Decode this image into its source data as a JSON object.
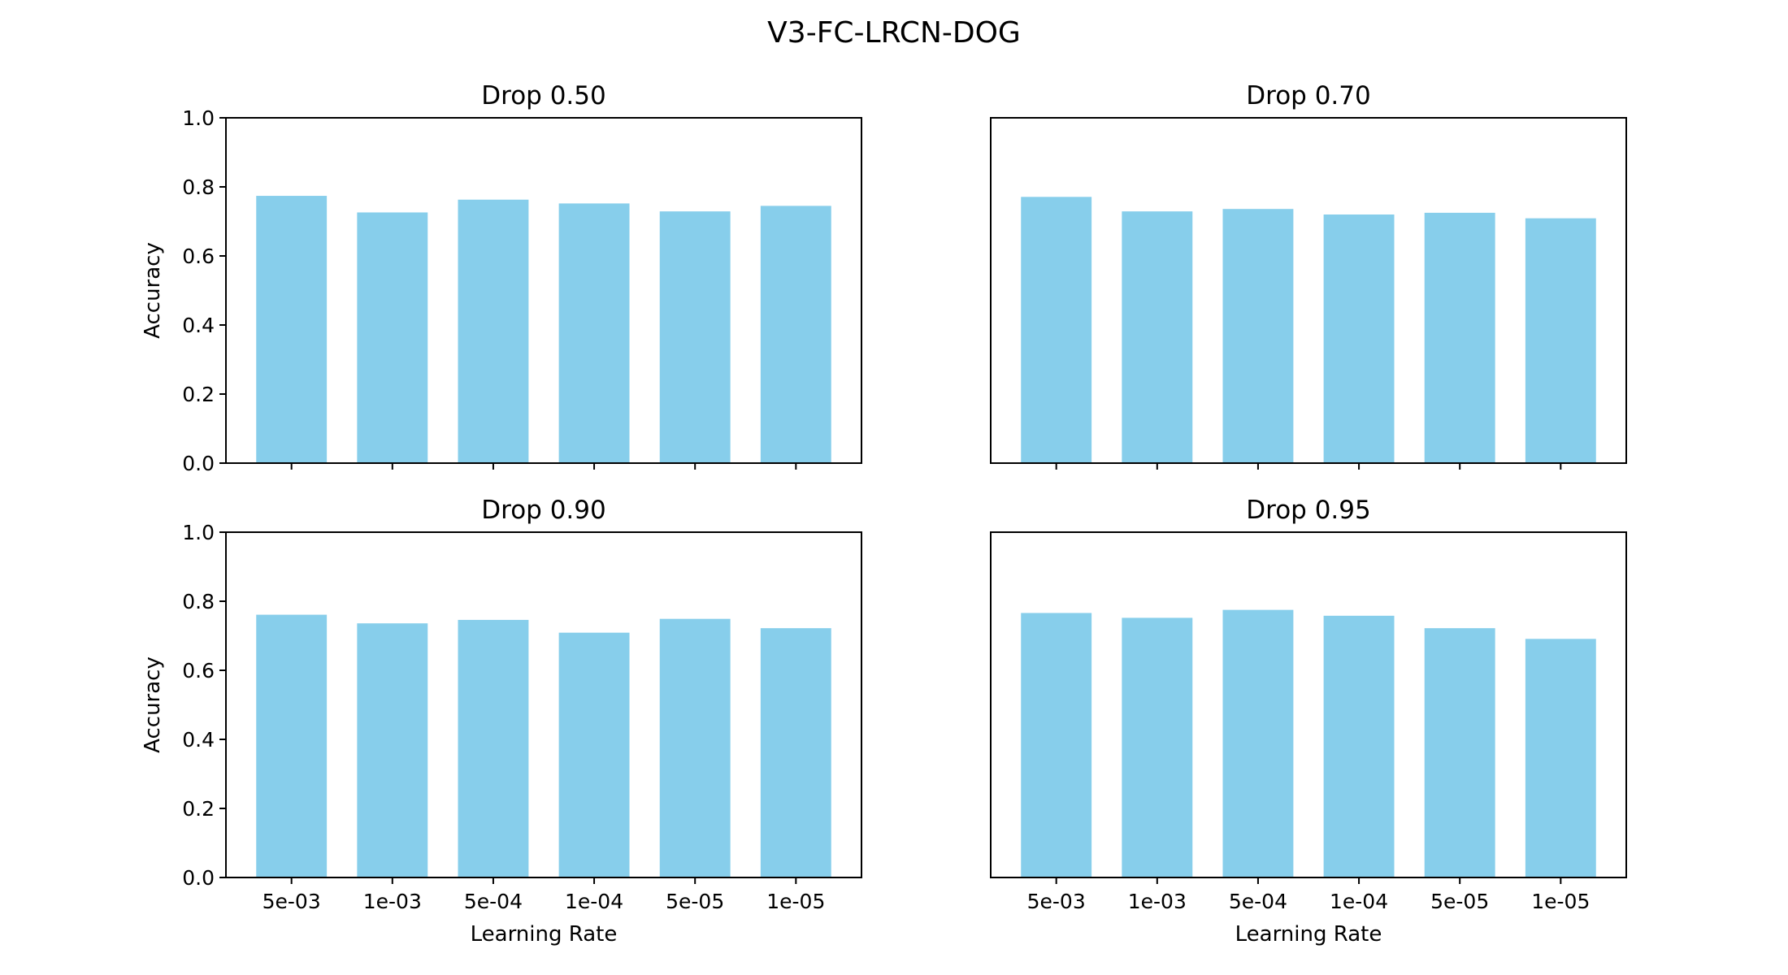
{
  "figure": {
    "title": "V3-FC-LRCN-DOG"
  },
  "style": {
    "bar_color": "#87ceeb",
    "axis_color": "#000000"
  },
  "chart_data": [
    {
      "type": "bar",
      "title": "Drop 0.50",
      "categories": [
        "5e-03",
        "1e-03",
        "5e-04",
        "1e-04",
        "5e-05",
        "1e-05"
      ],
      "values": [
        0.774,
        0.726,
        0.763,
        0.752,
        0.729,
        0.745
      ],
      "ylim": [
        0,
        1
      ],
      "yticks": [
        "0.0",
        "0.2",
        "0.4",
        "0.6",
        "0.8",
        "1.0"
      ],
      "ylabel": "Accuracy",
      "xlabel": ""
    },
    {
      "type": "bar",
      "title": "Drop 0.70",
      "categories": [
        "5e-03",
        "1e-03",
        "5e-04",
        "1e-04",
        "5e-05",
        "1e-05"
      ],
      "values": [
        0.771,
        0.729,
        0.736,
        0.72,
        0.725,
        0.709
      ],
      "ylim": [
        0,
        1
      ],
      "yticks": [],
      "ylabel": "",
      "xlabel": ""
    },
    {
      "type": "bar",
      "title": "Drop 0.90",
      "categories": [
        "5e-03",
        "1e-03",
        "5e-04",
        "1e-04",
        "5e-05",
        "1e-05"
      ],
      "values": [
        0.761,
        0.736,
        0.746,
        0.709,
        0.749,
        0.722
      ],
      "ylim": [
        0,
        1
      ],
      "yticks": [
        "0.0",
        "0.2",
        "0.4",
        "0.6",
        "0.8",
        "1.0"
      ],
      "ylabel": "Accuracy",
      "xlabel": "Learning Rate"
    },
    {
      "type": "bar",
      "title": "Drop 0.95",
      "categories": [
        "5e-03",
        "1e-03",
        "5e-04",
        "1e-04",
        "5e-05",
        "1e-05"
      ],
      "values": [
        0.766,
        0.752,
        0.775,
        0.758,
        0.722,
        0.691
      ],
      "ylim": [
        0,
        1
      ],
      "yticks": [],
      "ylabel": "",
      "xlabel": "Learning Rate"
    }
  ]
}
